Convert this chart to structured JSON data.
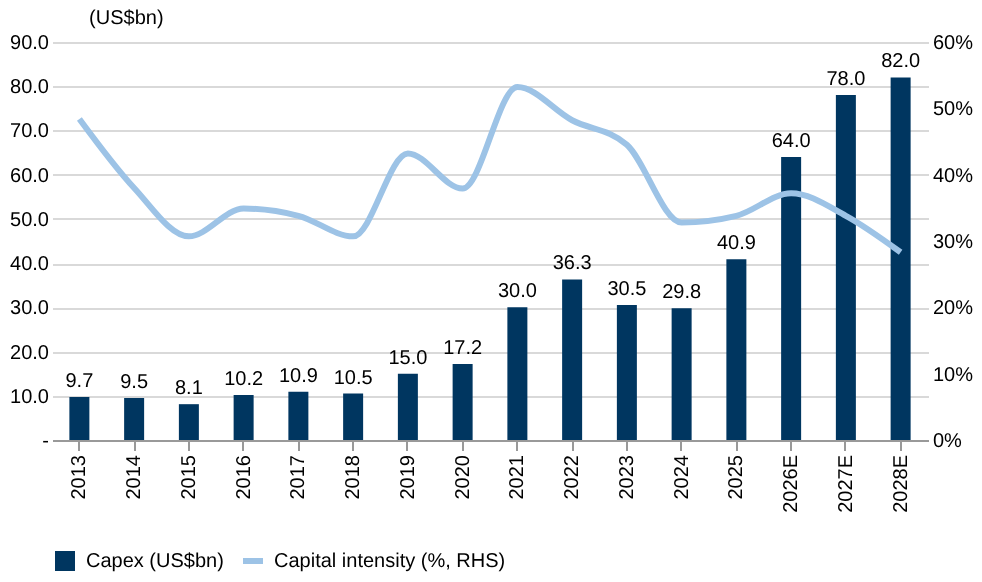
{
  "chart_data": {
    "type": "bar",
    "ylabel": "(US$bn)",
    "categories": [
      "2013",
      "2014",
      "2015",
      "2016",
      "2017",
      "2018",
      "2019",
      "2020",
      "2021",
      "2022",
      "2023",
      "2024",
      "2025",
      "2026E",
      "2027E",
      "2028E"
    ],
    "series": [
      {
        "name": "Capex (US$bn)",
        "color": "#003660",
        "values": [
          9.7,
          9.5,
          8.1,
          10.2,
          10.9,
          10.5,
          15.0,
          17.2,
          30.0,
          36.3,
          30.5,
          29.8,
          40.9,
          64.0,
          78.0,
          82.0
        ],
        "value_labels": [
          "9.7",
          "9.5",
          "8.1",
          "10.2",
          "10.9",
          "10.5",
          "15.0",
          "17.2",
          "30.0",
          "36.3",
          "30.5",
          "29.8",
          "40.9",
          "64.0",
          "78.0",
          "82.0"
        ]
      },
      {
        "name": "Capital intensity (%, RHS)",
        "type": "line",
        "axis": "y2",
        "color": "#9dc3e6",
        "values": [
          48.4,
          38,
          30.7,
          34.9,
          33.8,
          30.7,
          43.2,
          37.9,
          53.2,
          48.2,
          44.5,
          32.8,
          33.8,
          37.2,
          33.8,
          28.3
        ]
      }
    ],
    "ylim": [
      0,
      90
    ],
    "yticks": [
      {
        "value": 0,
        "label": "-"
      },
      {
        "value": 10,
        "label": "10.0"
      },
      {
        "value": 20,
        "label": "20.0"
      },
      {
        "value": 30,
        "label": "30.0"
      },
      {
        "value": 40,
        "label": "40.0"
      },
      {
        "value": 50,
        "label": "50.0"
      },
      {
        "value": 60,
        "label": "60.0"
      },
      {
        "value": 70,
        "label": "70.0"
      },
      {
        "value": 80,
        "label": "80.0"
      },
      {
        "value": 90,
        "label": "90.0"
      }
    ],
    "y2lim": [
      0,
      60
    ],
    "y2ticks": [
      {
        "value": 0,
        "label": "0%"
      },
      {
        "value": 10,
        "label": "10%"
      },
      {
        "value": 20,
        "label": "20%"
      },
      {
        "value": 30,
        "label": "30%"
      },
      {
        "value": 40,
        "label": "40%"
      },
      {
        "value": 50,
        "label": "50%"
      },
      {
        "value": 60,
        "label": "60%"
      }
    ],
    "grid": "y",
    "legend": "bottom"
  }
}
